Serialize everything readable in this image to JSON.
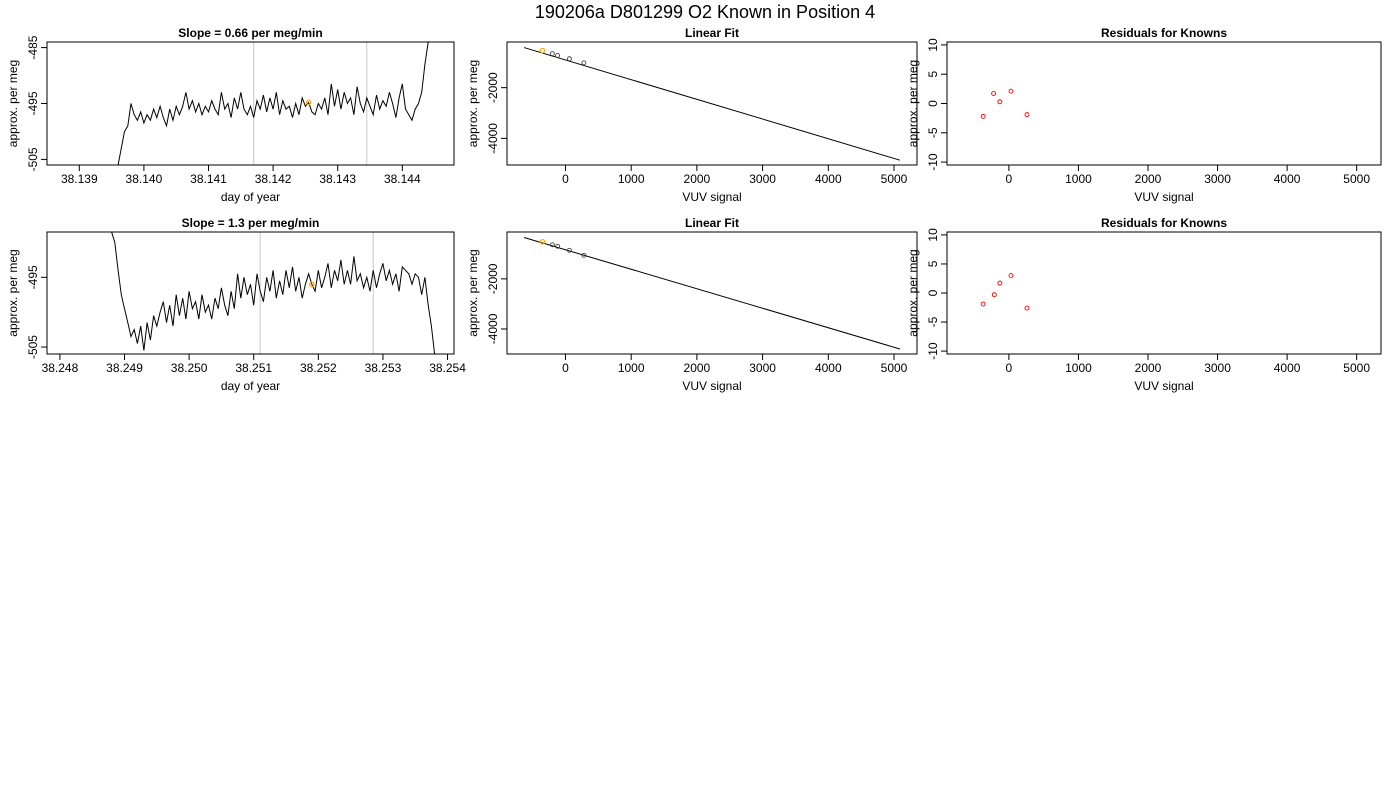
{
  "figure": {
    "title": "190206a      D801299   O2 Known in Position  4",
    "colors": {
      "trace": "#000000",
      "box": "#000000",
      "marker_vline": "#c8c8c8",
      "highlight": "#ffa500",
      "residual": "#ff0000"
    }
  },
  "chart_data": [
    {
      "type": "line",
      "title": "Slope =  0.66  per meg/min",
      "xlabel": "day of year",
      "ylabel": "approx. per meg",
      "xlim": [
        38.1385,
        38.1448
      ],
      "ylim": [
        -506,
        -484
      ],
      "xticks": [
        "38.139",
        "38.140",
        "38.141",
        "38.142",
        "38.143",
        "38.144"
      ],
      "yticks": [
        "-485",
        "-495",
        "-505"
      ],
      "vlines": [
        38.1417,
        38.14345
      ],
      "highlight_point": {
        "x": 38.14255,
        "y": -494.8
      },
      "series": [
        {
          "x": [
            38.1396,
            38.13965,
            38.1397,
            38.13975,
            38.1398,
            38.13985,
            38.1399,
            38.13995,
            38.14,
            38.14005,
            38.1401,
            38.14015,
            38.1402,
            38.14025,
            38.1403,
            38.14035,
            38.1404,
            38.14045,
            38.1405,
            38.14055,
            38.1406,
            38.14065,
            38.1407,
            38.14075,
            38.1408,
            38.14085,
            38.1409,
            38.14095,
            38.141,
            38.14105,
            38.1411,
            38.14115,
            38.1412,
            38.14125,
            38.1413,
            38.14135,
            38.1414,
            38.14145,
            38.1415,
            38.14155,
            38.1416,
            38.14165,
            38.1417,
            38.14175,
            38.1418,
            38.14185,
            38.1419,
            38.14195,
            38.142,
            38.14205,
            38.1421,
            38.14215,
            38.1422,
            38.14225,
            38.1423,
            38.14235,
            38.1424,
            38.14245,
            38.1425,
            38.14255,
            38.1426,
            38.14265,
            38.1427,
            38.14275,
            38.1428,
            38.14285,
            38.1429,
            38.14295,
            38.143,
            38.14305,
            38.1431,
            38.14315,
            38.1432,
            38.14325,
            38.1433,
            38.14335,
            38.1434,
            38.14345,
            38.1435,
            38.14355,
            38.1436,
            38.14365,
            38.1437,
            38.14375,
            38.1438,
            38.14385,
            38.1439,
            38.14395,
            38.144,
            38.14405,
            38.1441,
            38.14415,
            38.1442,
            38.14425,
            38.1443,
            38.14435,
            38.1444
          ],
          "y": [
            -506,
            -503,
            -500,
            -499,
            -495,
            -497,
            -498,
            -496.5,
            -498.5,
            -497,
            -498,
            -496,
            -497.5,
            -495.5,
            -497.5,
            -499,
            -496,
            -498,
            -495.5,
            -497,
            -495.5,
            -493,
            -496,
            -494.5,
            -496.5,
            -495,
            -497,
            -495.5,
            -496.5,
            -494.5,
            -496,
            -497,
            -493,
            -496,
            -495,
            -497.5,
            -494,
            -496,
            -493,
            -496,
            -497,
            -495.5,
            -497.5,
            -494.5,
            -496,
            -493.5,
            -496.5,
            -494,
            -496,
            -493,
            -497,
            -494.5,
            -496,
            -495.5,
            -497.5,
            -495,
            -497,
            -494,
            -495.5,
            -494.8,
            -496.5,
            -497,
            -495,
            -496,
            -494,
            -497,
            -491.5,
            -495.5,
            -492.5,
            -496,
            -493,
            -495,
            -494,
            -497,
            -492,
            -495,
            -496.5,
            -494,
            -495.5,
            -497,
            -493.5,
            -496,
            -494.5,
            -495.5,
            -493,
            -495,
            -497.5,
            -494,
            -491.5,
            -496,
            -497,
            -498,
            -496,
            -495,
            -493,
            -488,
            -484
          ]
        }
      ]
    },
    {
      "type": "scatter",
      "title": "Linear Fit",
      "xlabel": "VUV signal",
      "ylabel": "approx. per meg",
      "xlim": [
        -890,
        5350
      ],
      "ylim": [
        -5050,
        -200
      ],
      "xticks": [
        "0",
        "1000",
        "2000",
        "3000",
        "4000",
        "5000"
      ],
      "yticks": [
        "-2000",
        "-4000"
      ],
      "fit_line": {
        "x": [
          -630,
          5090
        ],
        "y": [
          -420,
          -4860
        ]
      },
      "series": [
        {
          "x": [
            -200,
            -120,
            60,
            280
          ],
          "y": [
            -660,
            -730,
            -860,
            -1020
          ]
        }
      ],
      "highlight_point": {
        "x": -350,
        "y": -540
      }
    },
    {
      "type": "scatter",
      "title": "Residuals for Knowns",
      "xlabel": "VUV signal",
      "ylabel": "approx. per meg",
      "xlim": [
        -890,
        5350
      ],
      "ylim": [
        -10.5,
        10.5
      ],
      "xticks": [
        "0",
        "1000",
        "2000",
        "3000",
        "4000",
        "5000"
      ],
      "yticks": [
        "10",
        "5",
        "0",
        "-5",
        "-10"
      ],
      "series": [
        {
          "x": [
            -370,
            -220,
            -130,
            30,
            260
          ],
          "y": [
            -2.2,
            1.7,
            0.3,
            2.1,
            -1.9
          ]
        }
      ]
    },
    {
      "type": "line",
      "title": "Slope =  1.3  per meg/min",
      "xlabel": "day of year",
      "ylabel": "approx. per meg",
      "xlim": [
        38.2478,
        38.2541
      ],
      "ylim": [
        -506,
        -488.5
      ],
      "xticks": [
        "38.248",
        "38.249",
        "38.250",
        "38.251",
        "38.252",
        "38.253",
        "38.254"
      ],
      "yticks": [
        "-495",
        "-505"
      ],
      "vlines": [
        38.2511,
        38.25285
      ],
      "highlight_point": {
        "x": 38.2519,
        "y": -496
      },
      "series": [
        {
          "x": [
            38.2488,
            38.24885,
            38.2489,
            38.24895,
            38.249,
            38.24905,
            38.2491,
            38.24915,
            38.2492,
            38.24925,
            38.2493,
            38.24935,
            38.2494,
            38.24945,
            38.2495,
            38.24955,
            38.2496,
            38.24965,
            38.2497,
            38.24975,
            38.2498,
            38.24985,
            38.2499,
            38.24995,
            38.25,
            38.25005,
            38.2501,
            38.25015,
            38.2502,
            38.25025,
            38.2503,
            38.25035,
            38.2504,
            38.25045,
            38.2505,
            38.25055,
            38.2506,
            38.25065,
            38.2507,
            38.25075,
            38.2508,
            38.25085,
            38.2509,
            38.25095,
            38.251,
            38.25105,
            38.2511,
            38.25115,
            38.2512,
            38.25125,
            38.2513,
            38.25135,
            38.2514,
            38.25145,
            38.2515,
            38.25155,
            38.2516,
            38.25165,
            38.2517,
            38.25175,
            38.2518,
            38.25185,
            38.2519,
            38.25195,
            38.252,
            38.25205,
            38.2521,
            38.25215,
            38.2522,
            38.25225,
            38.2523,
            38.25235,
            38.2524,
            38.25245,
            38.2525,
            38.25255,
            38.2526,
            38.25265,
            38.2527,
            38.25275,
            38.2528,
            38.25285,
            38.2529,
            38.25295,
            38.253,
            38.25305,
            38.2531,
            38.25315,
            38.2532,
            38.25325,
            38.2533,
            38.25335,
            38.2534,
            38.25345,
            38.2535,
            38.25355,
            38.2536,
            38.25365,
            38.2537,
            38.25375,
            38.2538
          ],
          "y": [
            -488.5,
            -490,
            -494,
            -497.5,
            -499.5,
            -501.5,
            -503.5,
            -502.5,
            -504.5,
            -502,
            -505.5,
            -501.5,
            -504,
            -500.5,
            -502,
            -500,
            -498.5,
            -501.5,
            -499,
            -502,
            -497.5,
            -500.5,
            -498,
            -501,
            -497,
            -499.5,
            -498.5,
            -501,
            -497.5,
            -500,
            -499,
            -501,
            -498,
            -499.5,
            -496.5,
            -499,
            -500.5,
            -497,
            -499.5,
            -494.5,
            -498,
            -495,
            -497.5,
            -496,
            -499,
            -494.5,
            -497,
            -498.5,
            -495,
            -497,
            -494,
            -498,
            -495.5,
            -497.5,
            -494,
            -496.5,
            -493.5,
            -497,
            -495,
            -498,
            -496,
            -494.5,
            -496,
            -497,
            -494,
            -496.5,
            -495,
            -493,
            -496.5,
            -494,
            -495.5,
            -492.5,
            -496,
            -494,
            -496,
            -492,
            -495.5,
            -494.5,
            -496.5,
            -495,
            -497,
            -494,
            -496.5,
            -494.5,
            -493,
            -495.5,
            -494,
            -496,
            -494.5,
            -497,
            -493.5,
            -494,
            -494.5,
            -496,
            -494.5,
            -495,
            -497.5,
            -495,
            -499,
            -502,
            -506
          ]
        }
      ]
    },
    {
      "type": "scatter",
      "title": "Linear Fit",
      "xlabel": "VUV signal",
      "ylabel": "approx. per meg",
      "xlim": [
        -890,
        5350
      ],
      "ylim": [
        -5000,
        -130
      ],
      "xticks": [
        "0",
        "1000",
        "2000",
        "3000",
        "4000",
        "5000"
      ],
      "yticks": [
        "-2000",
        "-4000"
      ],
      "fit_line": {
        "x": [
          -630,
          5090
        ],
        "y": [
          -350,
          -4800
        ]
      },
      "series": [
        {
          "x": [
            -200,
            -120,
            60,
            280
          ],
          "y": [
            -640,
            -700,
            -860,
            -1060
          ]
        }
      ],
      "highlight_point": {
        "x": -350,
        "y": -520
      }
    },
    {
      "type": "scatter",
      "title": "Residuals for Knowns",
      "xlabel": "VUV signal",
      "ylabel": "approx. per meg",
      "xlim": [
        -890,
        5350
      ],
      "ylim": [
        -10.5,
        10.5
      ],
      "xticks": [
        "0",
        "1000",
        "2000",
        "3000",
        "4000",
        "5000"
      ],
      "yticks": [
        "10",
        "5",
        "0",
        "-5",
        "-10"
      ],
      "series": [
        {
          "x": [
            -370,
            -210,
            -130,
            30,
            260
          ],
          "y": [
            -1.9,
            -0.3,
            1.7,
            3.0,
            -2.6
          ]
        }
      ]
    }
  ]
}
